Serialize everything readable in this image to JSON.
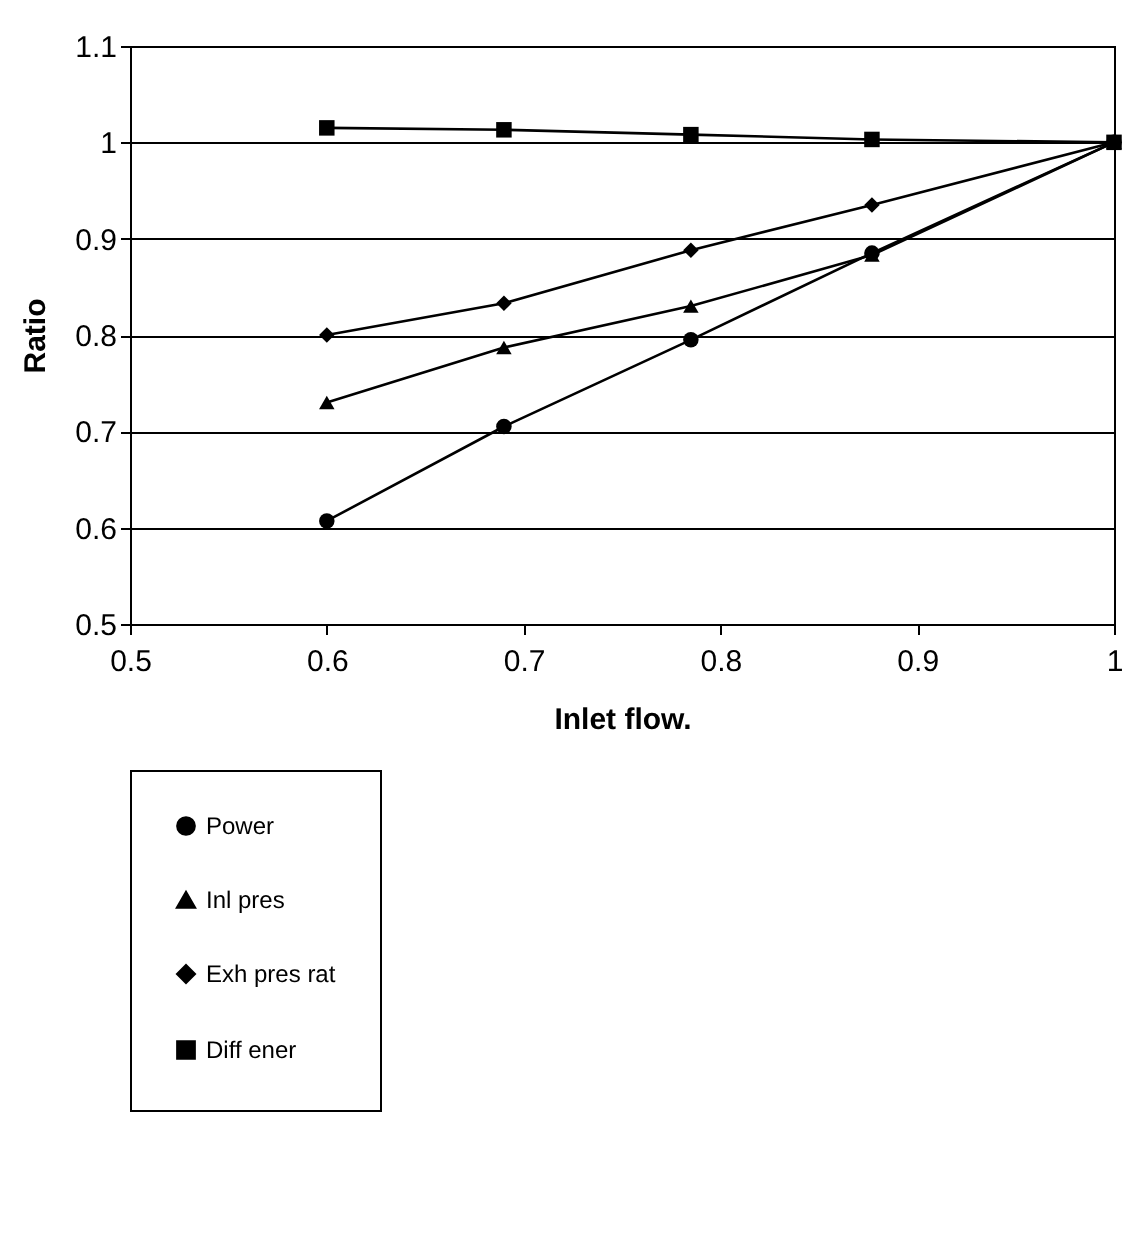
{
  "chart_data": {
    "type": "line",
    "xlabel": "Inlet flow.",
    "ylabel": "Ratio",
    "x": [
      0.6,
      0.69,
      0.785,
      0.877,
      1.0
    ],
    "series": [
      {
        "name": "Power",
        "color": "#000000",
        "marker": "circle",
        "values": [
          0.607,
          0.705,
          0.795,
          0.885,
          1.0
        ]
      },
      {
        "name": "Inl pres",
        "color": "#000000",
        "marker": "triangle",
        "values": [
          0.73,
          0.787,
          0.83,
          0.883,
          1.0
        ]
      },
      {
        "name": "Exh pres rat",
        "color": "#000000",
        "marker": "diamond",
        "values": [
          0.8,
          0.833,
          0.888,
          0.935,
          1.0
        ]
      },
      {
        "name": "Diff ener",
        "color": "#000000",
        "marker": "square",
        "values": [
          1.015,
          1.013,
          1.008,
          1.003,
          1.0
        ]
      }
    ],
    "xlim": [
      0.5,
      1.0
    ],
    "xticks": [
      0.5,
      0.6,
      0.7,
      0.8,
      0.9,
      1
    ],
    "ylim": [
      0.5,
      1.1
    ],
    "yticks": [
      0.5,
      0.6,
      0.7,
      0.8,
      0.9,
      1,
      1.1
    ],
    "grid": "y",
    "legend": "bottom",
    "line_style": "solid"
  }
}
